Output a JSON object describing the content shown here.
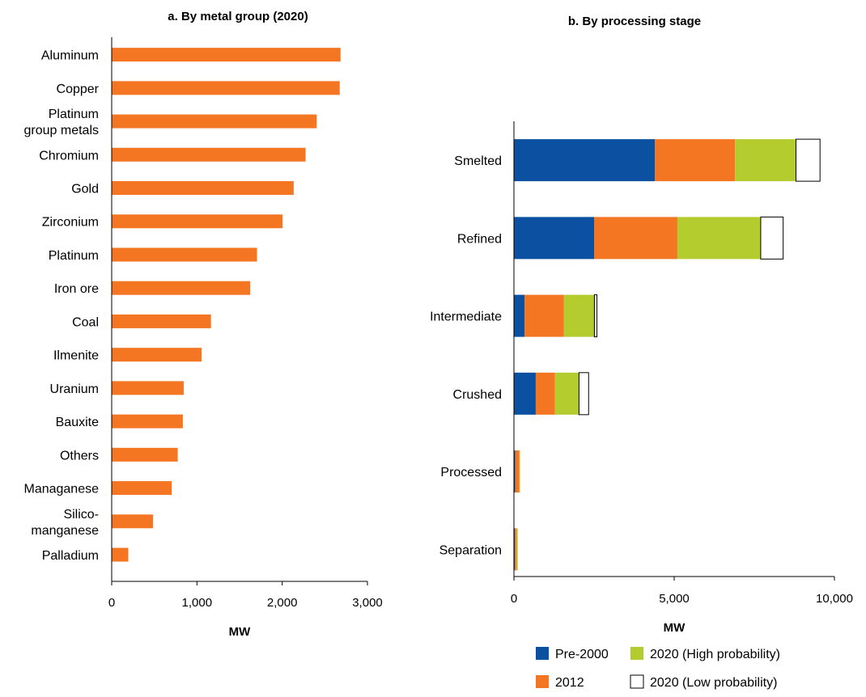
{
  "chart_data": [
    {
      "type": "bar",
      "orientation": "horizontal",
      "title": "a. By metal group (2020)",
      "xlabel": "MW",
      "ylabel": "",
      "xlim": [
        0,
        3000
      ],
      "xticks": [
        0,
        1000,
        2000,
        3000
      ],
      "xtick_labels": [
        "0",
        "1,000",
        "2,000",
        "3,000"
      ],
      "grid": false,
      "colors": {
        "bar": "#f47623"
      },
      "categories": [
        [
          "Aluminum"
        ],
        [
          "Copper"
        ],
        [
          "Platinum",
          "group metals"
        ],
        [
          "Chromium"
        ],
        [
          "Gold"
        ],
        [
          "Zirconium"
        ],
        [
          "Platinum"
        ],
        [
          "Iron ore"
        ],
        [
          "Coal"
        ],
        [
          "Ilmenite"
        ],
        [
          "Uranium"
        ],
        [
          "Bauxite"
        ],
        [
          "Others"
        ],
        [
          "Managanese"
        ],
        [
          "Silico-",
          "manganese"
        ],
        [
          "Palladium"
        ]
      ],
      "values": [
        2680,
        2670,
        2400,
        2270,
        2130,
        2000,
        1700,
        1620,
        1160,
        1050,
        840,
        830,
        770,
        700,
        480,
        190
      ]
    },
    {
      "type": "bar",
      "orientation": "horizontal",
      "stacked": true,
      "title": "b. By processing stage",
      "xlabel": "MW",
      "ylabel": "",
      "xlim": [
        0,
        10000
      ],
      "xticks": [
        0,
        5000,
        10000
      ],
      "xtick_labels": [
        "0",
        "5,000",
        "10,000"
      ],
      "grid": false,
      "legend_position": "bottom",
      "categories": [
        "Smelted",
        "Refined",
        "Intermediate",
        "Crushed",
        "Processed",
        "Separation"
      ],
      "series": [
        {
          "name": "Pre-2000",
          "color": "#0b50a1",
          "values": [
            4400,
            2500,
            330,
            680,
            40,
            30
          ]
        },
        {
          "name": "2012",
          "color": "#f47623",
          "values": [
            2500,
            2600,
            1230,
            600,
            130,
            50
          ]
        },
        {
          "name": "2020 (High probability)",
          "color": "#b5cc2f",
          "values": [
            1900,
            2600,
            950,
            750,
            20,
            40
          ]
        },
        {
          "name": "2020 (Low probability)",
          "color": "#ffffff",
          "values": [
            750,
            700,
            80,
            300,
            0,
            0
          ]
        }
      ]
    }
  ]
}
